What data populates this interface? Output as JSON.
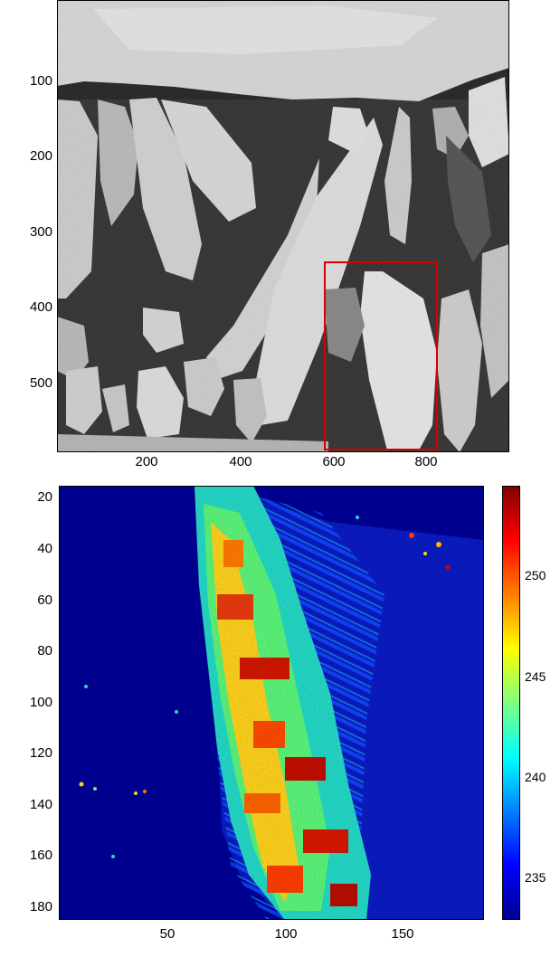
{
  "top_image": {
    "y_ticks": [
      "100",
      "200",
      "300",
      "400",
      "500"
    ],
    "x_ticks": [
      "200",
      "400",
      "600",
      "800"
    ],
    "highlight_color": "#e00000"
  },
  "heatmap": {
    "y_ticks": [
      "20",
      "40",
      "60",
      "80",
      "100",
      "120",
      "140",
      "160",
      "180"
    ],
    "x_ticks": [
      "50",
      "100",
      "150"
    ],
    "colorbar_ticks": [
      "250",
      "245",
      "240",
      "235"
    ],
    "colormap": "jet"
  }
}
